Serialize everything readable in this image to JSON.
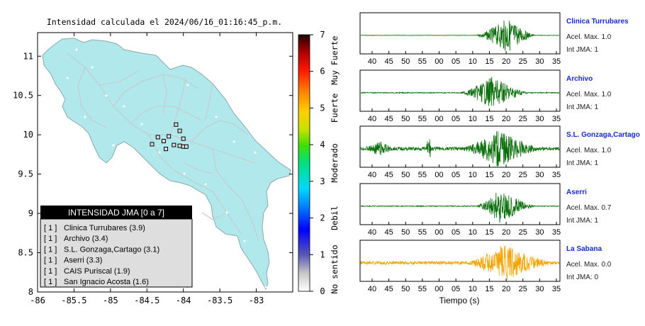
{
  "map": {
    "title": "Intensidad calculada el 2024/06/16_01:16:45_p.m.",
    "y_ticks": [
      "11",
      "10.5",
      "10",
      "9.5",
      "9",
      "8.5",
      "8"
    ],
    "x_ticks": [
      "-86",
      "-85.5",
      "-85",
      "-84.5",
      "-84",
      "-83.5",
      "-83"
    ],
    "xlim": [
      -86,
      -82.5
    ],
    "ylim": [
      8,
      11.3
    ],
    "land_color": "#b0e8ec",
    "legend": {
      "title": "INTENSIDAD JMA [0 a 7]",
      "items": [
        {
          "level": "[ 1 ]",
          "label": "Clinica Turrubares (3.9)"
        },
        {
          "level": "[ 1 ]",
          "label": "Archivo (3.4)"
        },
        {
          "level": "[ 1 ]",
          "label": "S.L. Gonzaga,Cartago (3.1)"
        },
        {
          "level": "[ 1 ]",
          "label": "Aserri (3.3)"
        },
        {
          "level": "[ 1 ]",
          "label": "CAIS Puriscal (1.9)"
        },
        {
          "level": "[ 1 ]",
          "label": "San Ignacio Acosta (1.6)"
        }
      ]
    }
  },
  "colorbar": {
    "ticks": [
      "7",
      "6",
      "5",
      "4",
      "3",
      "2",
      "1",
      "0"
    ],
    "range": [
      0,
      7
    ],
    "labels": [
      "Muy Fuerte",
      "Fuerte",
      "Moderado",
      "Debil",
      "No sentido"
    ]
  },
  "stations": [
    {
      "name": "Clinica Turrubares",
      "acel": "Acel. Max. 1.0",
      "int": "Int JMA: 1",
      "color": "#0a6e0a",
      "x_ticks": [
        "40",
        "45",
        "50",
        "55",
        "00",
        "05",
        "10",
        "15",
        "20",
        "25",
        "30",
        "35"
      ]
    },
    {
      "name": "Archivo",
      "acel": "Acel. Max. 1.0",
      "int": "Int JMA: 1",
      "color": "#0a6e0a",
      "x_ticks": [
        "40",
        "45",
        "50",
        "55",
        "00",
        "05",
        "10",
        "15",
        "20",
        "25",
        "30",
        "35"
      ]
    },
    {
      "name": "S.L. Gonzaga,Cartago",
      "acel": "Acel. Max. 1.0",
      "int": "Int JMA: 1",
      "color": "#0a6e0a",
      "x_ticks": [
        "40",
        "45",
        "50",
        "55",
        "00",
        "05",
        "10",
        "15",
        "20",
        "25",
        "30",
        "35"
      ]
    },
    {
      "name": "Aserri",
      "acel": "Acel. Max. 0.7",
      "int": "Int JMA: 1",
      "color": "#0a6e0a",
      "x_ticks": [
        "40",
        "45",
        "50",
        "55",
        "00",
        "05",
        "10",
        "15",
        "20",
        "25",
        "30",
        "35"
      ]
    },
    {
      "name": "La Sabana",
      "acel": "Acel. Max. 0.0",
      "int": "Int JMA: 0",
      "color": "#f5a300",
      "x_ticks": [
        "40",
        "45",
        "50",
        "55",
        "00",
        "05",
        "10",
        "15",
        "20",
        "25",
        "30",
        "35"
      ]
    }
  ],
  "waveform_xlabel": "Tiempo (s)",
  "chart_data": [
    {
      "type": "scatter",
      "title": "Intensidad calculada el 2024/06/16_01:16:45_p.m.",
      "xlim": [
        -86,
        -82.5
      ],
      "ylim": [
        8,
        11.3
      ],
      "points": [
        {
          "x": -84.1,
          "y": 10.13
        },
        {
          "x": -84.05,
          "y": 10.05
        },
        {
          "x": -84.2,
          "y": 9.98
        },
        {
          "x": -84.35,
          "y": 9.97
        },
        {
          "x": -84.27,
          "y": 9.92
        },
        {
          "x": -84.0,
          "y": 9.95
        },
        {
          "x": -84.43,
          "y": 9.88
        },
        {
          "x": -84.13,
          "y": 9.87
        },
        {
          "x": -84.05,
          "y": 9.86
        },
        {
          "x": -84.0,
          "y": 9.85
        },
        {
          "x": -83.96,
          "y": 9.85
        },
        {
          "x": -84.24,
          "y": 9.82
        }
      ]
    }
  ]
}
